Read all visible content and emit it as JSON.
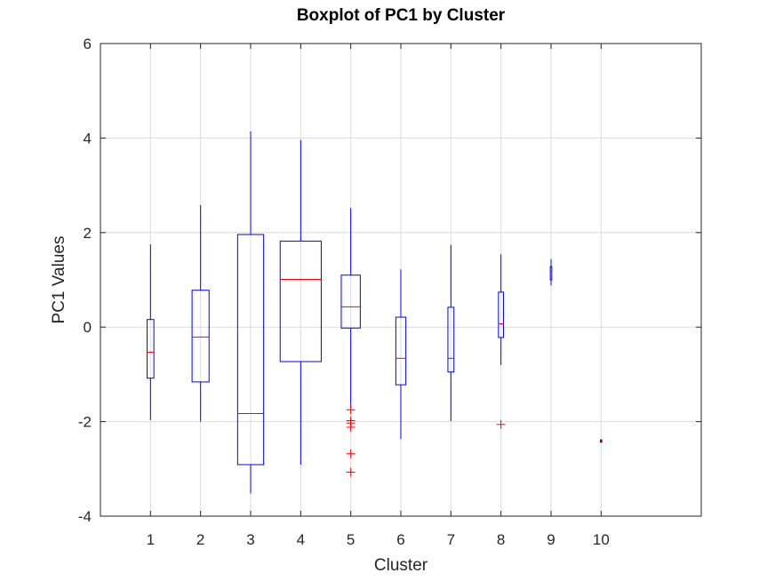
{
  "chart_data": {
    "type": "boxplot",
    "title": "Boxplot of PC1 by Cluster",
    "xlabel": "Cluster",
    "ylabel": "PC1 Values",
    "xlim": [
      0,
      12
    ],
    "ylim": [
      -4,
      6
    ],
    "yticks": [
      -4,
      -2,
      0,
      2,
      4,
      6
    ],
    "grid": true,
    "categories": [
      "1",
      "2",
      "3",
      "4",
      "5",
      "6",
      "7",
      "8",
      "9",
      "10"
    ],
    "boxes": [
      {
        "cluster": "1",
        "whisker_low": -1.97,
        "q1": -1.08,
        "median": -0.53,
        "q3": 0.16,
        "whisker_high": 1.75,
        "outliers": []
      },
      {
        "cluster": "2",
        "whisker_low": -2.0,
        "q1": -1.16,
        "median": -0.21,
        "q3": 0.78,
        "whisker_high": 2.58,
        "outliers": []
      },
      {
        "cluster": "3",
        "whisker_low": -3.52,
        "q1": -2.91,
        "median": -1.83,
        "q3": 1.96,
        "whisker_high": 4.14,
        "outliers": []
      },
      {
        "cluster": "4",
        "whisker_low": -2.91,
        "q1": -0.73,
        "median": 1.01,
        "q3": 1.82,
        "whisker_high": 3.96,
        "outliers": []
      },
      {
        "cluster": "5",
        "whisker_low": -1.72,
        "q1": -0.02,
        "median": 0.43,
        "q3": 1.1,
        "whisker_high": 2.52,
        "outliers": [
          -1.75,
          -1.98,
          -2.03,
          -2.12,
          -2.68,
          -3.07
        ]
      },
      {
        "cluster": "6",
        "whisker_low": -2.37,
        "q1": -1.22,
        "median": -0.66,
        "q3": 0.21,
        "whisker_high": 1.22,
        "outliers": []
      },
      {
        "cluster": "7",
        "whisker_low": -1.99,
        "q1": -0.95,
        "median": -0.66,
        "q3": 0.42,
        "whisker_high": 1.74,
        "outliers": []
      },
      {
        "cluster": "8",
        "whisker_low": -0.8,
        "q1": -0.22,
        "median": 0.07,
        "q3": 0.74,
        "whisker_high": 1.54,
        "outliers": [
          -2.06
        ]
      },
      {
        "cluster": "9",
        "whisker_low": 0.88,
        "q1": 1.0,
        "median": 1.17,
        "q3": 1.28,
        "whisker_high": 1.44,
        "outliers": []
      },
      {
        "cluster": "10",
        "whisker_low": -2.45,
        "q1": -2.43,
        "median": -2.41,
        "q3": -2.39,
        "whisker_high": -2.37,
        "outliers": []
      }
    ],
    "colors": {
      "box": "#0000ff",
      "median": "#ff0000",
      "outlier": "#ff0000",
      "grid": "#dcdcdc",
      "axis": "#262626"
    }
  }
}
